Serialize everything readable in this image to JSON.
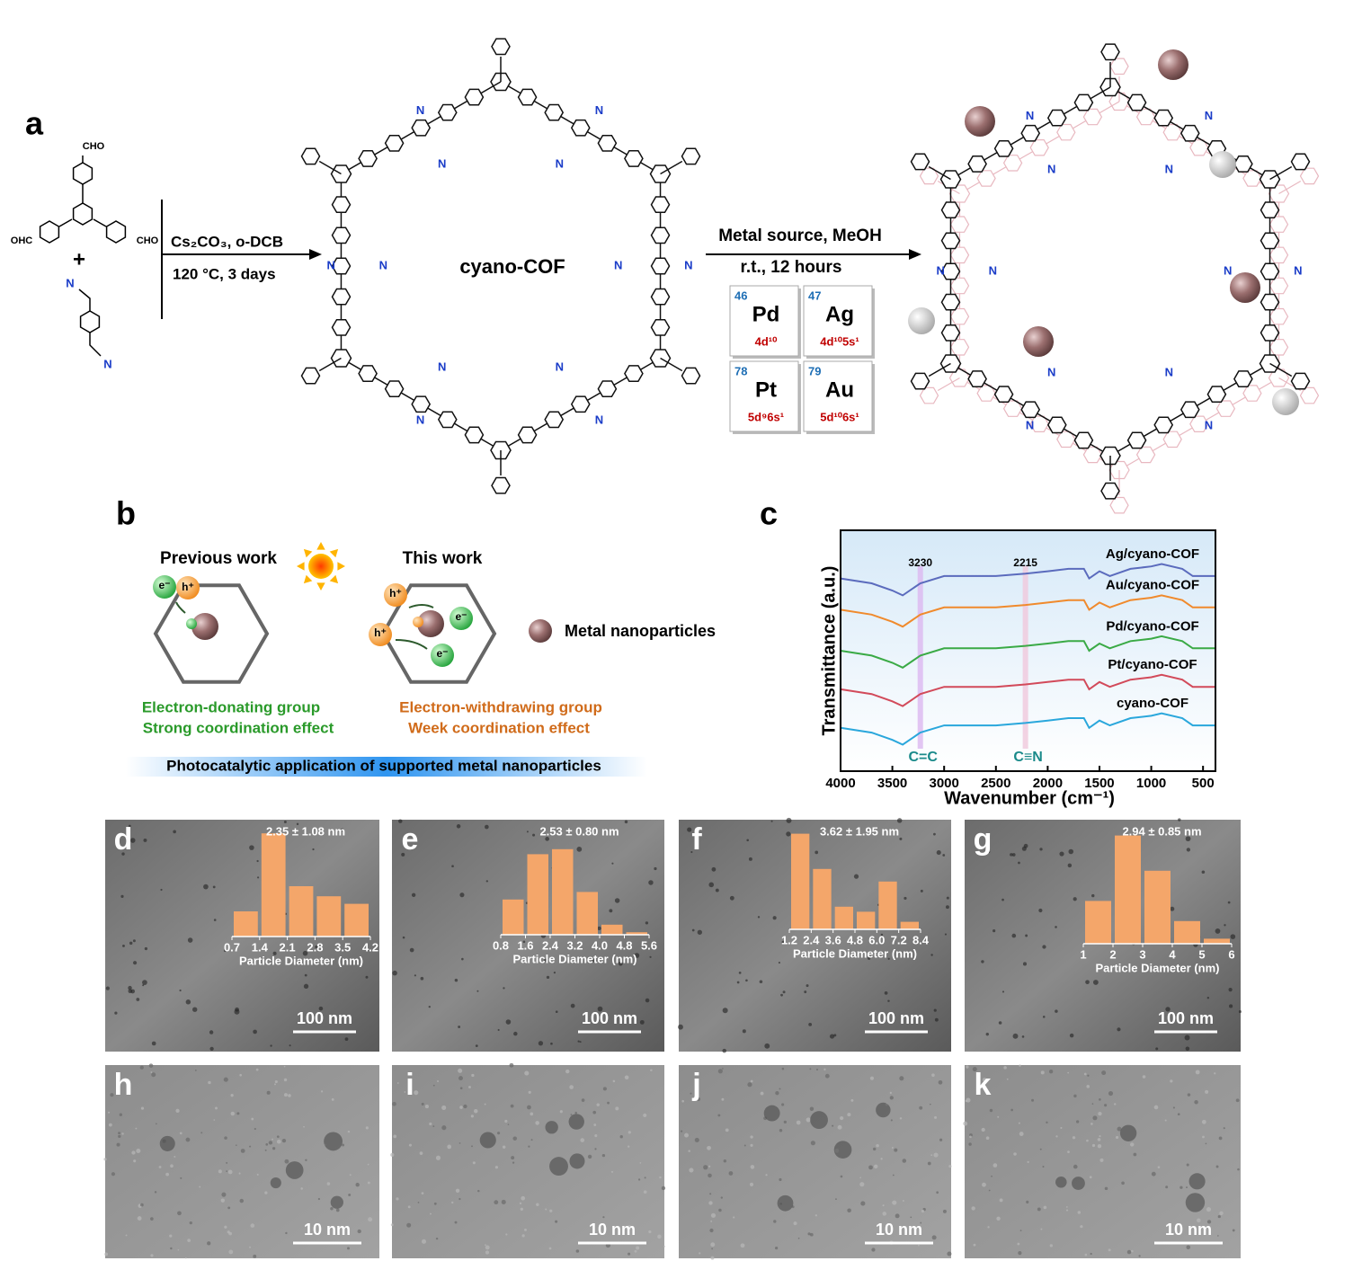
{
  "panel_a": {
    "label": "a",
    "reactant_groups": [
      "CHO",
      "OHC",
      "CHO"
    ],
    "plus": "+",
    "nitrile_label": "N",
    "step1": {
      "reagents": "Cs₂CO₃, o-DCB",
      "conditions": "120 °C, 3 days"
    },
    "product": "cyano-COF",
    "step2": {
      "reagents": "Metal source, MeOH",
      "conditions": "r.t., 12 hours"
    },
    "metals": [
      {
        "number": 46,
        "symbol": "Pd",
        "configuration": "4d¹⁰"
      },
      {
        "number": 47,
        "symbol": "Ag",
        "configuration": "4d¹⁰5s¹"
      },
      {
        "number": 78,
        "symbol": "Pt",
        "configuration": "5d⁹6s¹"
      },
      {
        "number": 79,
        "symbol": "Au",
        "configuration": "5d¹⁰6s¹"
      }
    ]
  },
  "panel_b": {
    "label": "b",
    "previous_title": "Previous work",
    "this_title": "This work",
    "electron": "e⁻",
    "hole": "h⁺",
    "legend": "Metal nanoparticles",
    "previous_notes": [
      "Electron-donating group",
      "Strong coordination effect"
    ],
    "this_notes": [
      "Electron-withdrawing group",
      "Week coordination effect"
    ],
    "banner": "Photocatalytic application of supported metal nanoparticles"
  },
  "chart_data": [
    {
      "type": "line",
      "panel": "c",
      "xlabel": "Wavenumber (cm⁻¹)",
      "ylabel": "Transmittance (a.u.)",
      "x": [
        4000,
        3700,
        3500,
        3400,
        3230,
        3000,
        2500,
        2215,
        2000,
        1800,
        1650,
        1600,
        1500,
        1400,
        1200,
        1000,
        900,
        700,
        600,
        500,
        380
      ],
      "xlim": [
        4000,
        380
      ],
      "xticks": [
        4000,
        3500,
        3000,
        2500,
        2000,
        1500,
        1000,
        500
      ],
      "ylim": [
        0,
        10
      ],
      "series": [
        {
          "name": "Ag/cyano-COF",
          "color": "#5b6bbd",
          "values": [
            8.0,
            7.8,
            7.5,
            7.3,
            7.8,
            8.1,
            8.1,
            8.2,
            8.3,
            8.4,
            8.4,
            8.0,
            8.3,
            8.1,
            8.4,
            8.5,
            8.6,
            8.4,
            8.1,
            8.1,
            8.1
          ]
        },
        {
          "name": "Au/cyano-COF",
          "color": "#f08a2c",
          "values": [
            6.7,
            6.5,
            6.2,
            6.0,
            6.5,
            6.8,
            6.8,
            6.9,
            7.0,
            7.1,
            7.1,
            6.7,
            7.0,
            6.8,
            7.1,
            7.2,
            7.3,
            7.1,
            6.8,
            6.8,
            6.8
          ]
        },
        {
          "name": "Pd/cyano-COF",
          "color": "#3aaa45",
          "values": [
            5.0,
            4.8,
            4.5,
            4.3,
            4.8,
            5.1,
            5.1,
            5.2,
            5.3,
            5.4,
            5.4,
            5.0,
            5.3,
            5.1,
            5.4,
            5.5,
            5.6,
            5.4,
            5.1,
            5.1,
            5.1
          ]
        },
        {
          "name": "Pt/cyano-COF",
          "color": "#d24a5a",
          "values": [
            3.4,
            3.2,
            2.9,
            2.7,
            3.2,
            3.5,
            3.5,
            3.6,
            3.7,
            3.8,
            3.8,
            3.4,
            3.7,
            3.5,
            3.8,
            3.9,
            4.0,
            3.8,
            3.5,
            3.5,
            3.5
          ]
        },
        {
          "name": "cyano-COF",
          "color": "#2aa7dc",
          "values": [
            1.8,
            1.6,
            1.3,
            1.1,
            1.6,
            1.9,
            1.9,
            2.0,
            2.1,
            2.2,
            2.2,
            1.8,
            2.1,
            1.9,
            2.2,
            2.3,
            2.4,
            2.2,
            1.9,
            1.9,
            1.9
          ]
        }
      ],
      "annotations": [
        {
          "wavenumber": 3230,
          "bond": "C=C"
        },
        {
          "wavenumber": 2215,
          "bond": "C≡N"
        }
      ]
    },
    {
      "type": "histogram",
      "panel": "d",
      "stat": "2.35 ± 1.08 nm",
      "xlabel": "Particle Diameter (nm)",
      "scale_bar": "100 nm",
      "color": "#f4a66a",
      "bins": [
        0.7,
        1.4,
        2.1,
        2.8,
        3.5,
        4.2
      ],
      "values": [
        10,
        41,
        20,
        16,
        13
      ]
    },
    {
      "type": "histogram",
      "panel": "e",
      "stat": "2.53 ± 0.80 nm",
      "xlabel": "Particle Diameter (nm)",
      "scale_bar": "100 nm",
      "color": "#f4a66a",
      "bins": [
        0.8,
        1.6,
        2.4,
        3.2,
        {
          "value": 4,
          "label": "4.0"
        },
        4.8,
        5.6
      ],
      "values": [
        14,
        32,
        34,
        17,
        4,
        1
      ]
    },
    {
      "type": "histogram",
      "panel": "f",
      "stat": "3.62 ± 1.95 nm",
      "xlabel": "Particle Diameter (nm)",
      "scale_bar": "100 nm",
      "color": "#f4a66a",
      "bins": [
        1.2,
        2.4,
        3.6,
        4.8,
        {
          "value": 6,
          "label": "6.0"
        },
        7.2,
        8.4
      ],
      "values": [
        38,
        24,
        9,
        7,
        19,
        3
      ]
    },
    {
      "type": "histogram",
      "panel": "g",
      "stat": "2.94 ± 0.85 nm",
      "xlabel": "Particle Diameter (nm)",
      "scale_bar": "100 nm",
      "color": "#f4a66a",
      "bins": [
        1,
        2,
        3,
        4,
        5,
        6
      ],
      "values": [
        17,
        43,
        29,
        9,
        2
      ]
    }
  ],
  "hrtem": [
    {
      "panel": "h",
      "scale_bar": "10 nm"
    },
    {
      "panel": "i",
      "scale_bar": "10 nm"
    },
    {
      "panel": "j",
      "scale_bar": "10 nm"
    },
    {
      "panel": "k",
      "scale_bar": "10 nm"
    }
  ]
}
